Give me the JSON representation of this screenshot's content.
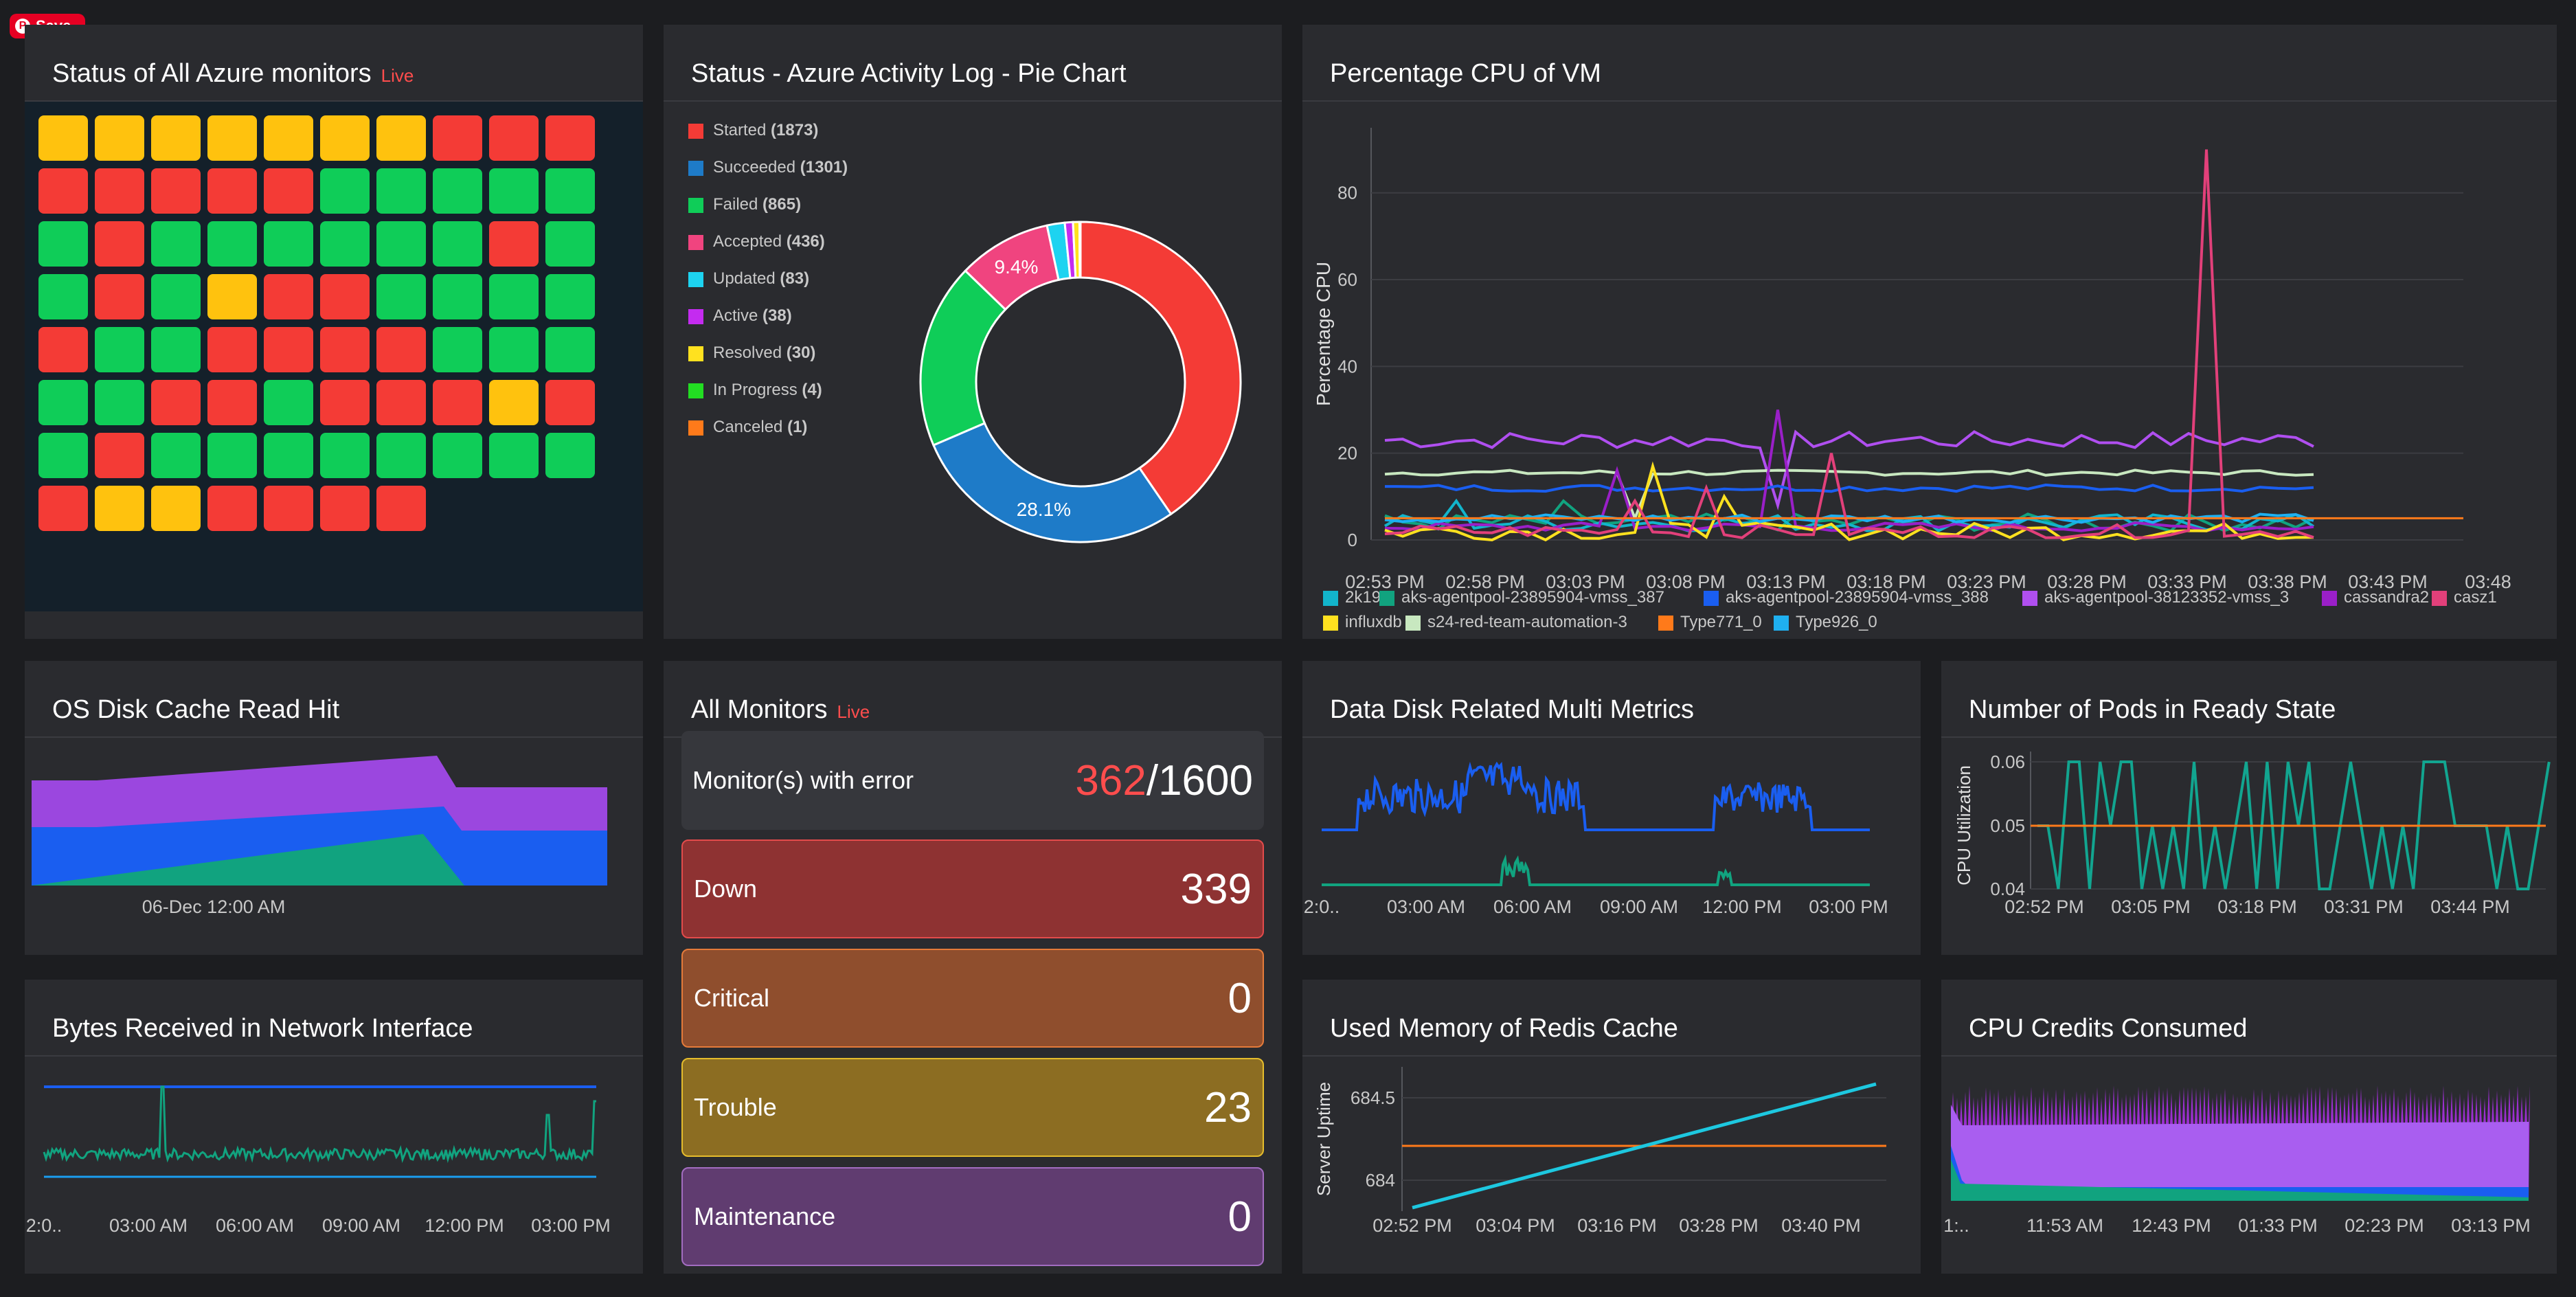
{
  "save_badge": {
    "label": "Save"
  },
  "status_grid": {
    "title": "Status of All Azure monitors",
    "live": "Live",
    "colors": {
      "up": "#0fcd58",
      "down": "#f43b36",
      "trouble": "#ffc20e"
    },
    "rows": [
      [
        "trouble",
        "trouble",
        "trouble",
        "trouble",
        "trouble",
        "trouble",
        "trouble",
        "down",
        "down",
        "down"
      ],
      [
        "down",
        "down",
        "down",
        "down",
        "down",
        "up",
        "up",
        "up",
        "up",
        "up"
      ],
      [
        "up",
        "down",
        "up",
        "up",
        "up",
        "up",
        "up",
        "up",
        "down",
        "up"
      ],
      [
        "up",
        "down",
        "up",
        "trouble",
        "down",
        "down",
        "up",
        "up",
        "up",
        "up"
      ],
      [
        "down",
        "up",
        "up",
        "down",
        "down",
        "down",
        "down",
        "up",
        "up",
        "up"
      ],
      [
        "up",
        "up",
        "down",
        "down",
        "up",
        "down",
        "down",
        "down",
        "trouble",
        "down"
      ],
      [
        "up",
        "down",
        "up",
        "up",
        "up",
        "up",
        "up",
        "up",
        "up",
        "up"
      ],
      [
        "down",
        "trouble",
        "trouble",
        "down",
        "down",
        "down",
        "down"
      ]
    ]
  },
  "pie": {
    "title": "Status - Azure Activity Log - Pie Chart",
    "legend": [
      {
        "label": "Started",
        "count": "(1873)",
        "value": 1873,
        "color": "#f43b36"
      },
      {
        "label": "Succeeded",
        "count": "(1301)",
        "value": 1301,
        "color": "#1e7bc8"
      },
      {
        "label": "Failed",
        "count": "(865)",
        "value": 865,
        "color": "#0fcd58"
      },
      {
        "label": "Accepted",
        "count": "(436)",
        "value": 436,
        "color": "#f0447f"
      },
      {
        "label": "Updated",
        "count": "(83)",
        "value": 83,
        "color": "#1dd3f0"
      },
      {
        "label": "Active",
        "count": "(38)",
        "value": 38,
        "color": "#c42bf0"
      },
      {
        "label": "Resolved",
        "count": "(30)",
        "value": 30,
        "color": "#ffe11f"
      },
      {
        "label": "In Progress",
        "count": "(4)",
        "value": 4,
        "color": "#22dd22"
      },
      {
        "label": "Canceled",
        "count": "(1)",
        "value": 1,
        "color": "#ff7a1a"
      }
    ],
    "slice_labels": {
      "accepted": "9.4%",
      "succeeded": "28.1%"
    }
  },
  "cpu": {
    "title": "Percentage CPU of VM",
    "ylabel": "Percentage CPU",
    "yticks": [
      "80",
      "60",
      "40",
      "20",
      "0"
    ],
    "xticks": [
      "02:53 PM",
      "02:58 PM",
      "03:03 PM",
      "03:08 PM",
      "03:13 PM",
      "03:18 PM",
      "03:23 PM",
      "03:28 PM",
      "03:33 PM",
      "03:38 PM",
      "03:43 PM",
      "03:48"
    ],
    "legend": [
      {
        "label": "2k19",
        "color": "#12b5cb"
      },
      {
        "label": "aks-agentpool-23895904-vmss_387",
        "color": "#11a37f"
      },
      {
        "label": "aks-agentpool-23895904-vmss_388",
        "color": "#1a5ef0"
      },
      {
        "label": "aks-agentpool-38123352-vmss_3",
        "color": "#b04ff0"
      },
      {
        "label": "cassandra2",
        "color": "#9a1fc8"
      },
      {
        "label": "casz1",
        "color": "#e2407a"
      },
      {
        "label": "influxdb",
        "color": "#ffe11f"
      },
      {
        "label": "s24-red-team-automation-3",
        "color": "#c8e8c0"
      },
      {
        "label": "Type771_0",
        "color": "#ff7a1a"
      },
      {
        "label": "Type926_0",
        "color": "#1fb0f0"
      }
    ]
  },
  "os_disk": {
    "title": "OS Disk Cache Read Hit",
    "xtick": "06-Dec 12:00 AM",
    "colors": {
      "purple": "#9b47df",
      "blue": "#1a5ef0",
      "green": "#11a37f"
    }
  },
  "all_monitors": {
    "title": "All Monitors",
    "live": "Live",
    "error_label": "Monitor(s) with error",
    "error_count": "362",
    "total": "/1600",
    "rows": [
      {
        "label": "Down",
        "value": "339",
        "bg": "#8e3232",
        "border": "#e34b4b"
      },
      {
        "label": "Critical",
        "value": "0",
        "bg": "#8f4e2d",
        "border": "#e57b3a"
      },
      {
        "label": "Trouble",
        "value": "23",
        "bg": "#8c6d22",
        "border": "#e6bd2c"
      },
      {
        "label": "Maintenance",
        "value": "0",
        "bg": "#603c70",
        "border": "#a36dc1"
      }
    ]
  },
  "data_disk": {
    "title": "Data Disk Related Multi Metrics",
    "xticks": [
      "2:0..",
      "03:00 AM",
      "06:00 AM",
      "09:00 AM",
      "12:00 PM",
      "03:00 PM"
    ]
  },
  "pods": {
    "title": "Number of Pods in Ready State",
    "ylabel": "CPU Utilization",
    "yticks": [
      "0.06",
      "0.05",
      "0.04"
    ],
    "xticks": [
      "02:52 PM",
      "03:05 PM",
      "03:18 PM",
      "03:31 PM",
      "03:44 PM"
    ]
  },
  "bytes": {
    "title": "Bytes Received in Network Interface",
    "xticks": [
      "2:0..",
      "03:00 AM",
      "06:00 AM",
      "09:00 AM",
      "12:00 PM",
      "03:00 PM"
    ]
  },
  "redis": {
    "title": "Used Memory of Redis Cache",
    "ylabel": "Server Uptime",
    "yticks": [
      "684.5",
      "684"
    ],
    "xticks": [
      "02:52 PM",
      "03:04 PM",
      "03:16 PM",
      "03:28 PM",
      "03:40 PM"
    ]
  },
  "credits": {
    "title": "CPU Credits Consumed",
    "xticks": [
      "1:..",
      "11:53 AM",
      "12:43 PM",
      "01:33 PM",
      "02:23 PM",
      "03:13 PM"
    ]
  }
}
